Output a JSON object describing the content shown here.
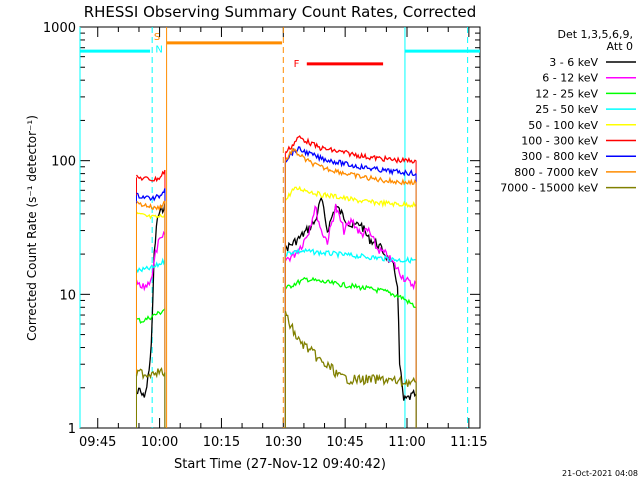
{
  "chart_data": {
    "type": "line",
    "title": "RHESSI Observing Summary Count Rates, Corrected",
    "xlabel": "Start Time (27-Nov-12 09:40:42)",
    "ylabel": "Corrected Count Rate (s⁻¹ detector⁻¹)",
    "x_unit": "minutes since 09:40:42",
    "xlim": [
      0,
      97
    ],
    "ylim": [
      1,
      1000
    ],
    "yscale": "log",
    "x_ticks": [
      {
        "label": "09:45",
        "value": 4.3
      },
      {
        "label": "10:00",
        "value": 19.3
      },
      {
        "label": "10:15",
        "value": 34.3
      },
      {
        "label": "10:30",
        "value": 49.3
      },
      {
        "label": "10:45",
        "value": 64.3
      },
      {
        "label": "11:00",
        "value": 79.3
      },
      {
        "label": "11:15",
        "value": 94.3
      }
    ],
    "y_ticks": [
      {
        "label": "1",
        "value": 1
      },
      {
        "label": "10",
        "value": 10
      },
      {
        "label": "100",
        "value": 100
      },
      {
        "label": "1000",
        "value": 1000
      }
    ],
    "legend": {
      "position": "top-right",
      "header": [
        "Det 1,3,5,6,9,",
        "Att 0"
      ]
    },
    "series": [
      {
        "name": "3 - 6 keV",
        "color": "#000000",
        "points": [
          [
            13.7,
            1.8
          ],
          [
            14.5,
            1.9
          ],
          [
            15.3,
            1.7
          ],
          [
            16.2,
            2.0
          ],
          [
            17.3,
            4.0
          ],
          [
            18.0,
            20
          ],
          [
            18.8,
            38
          ],
          [
            19.8,
            42
          ],
          [
            20.6,
            48
          ]
        ],
        "points2": [
          [
            49.8,
            22
          ],
          [
            51.5,
            24
          ],
          [
            53.0,
            26
          ],
          [
            55.0,
            30
          ],
          [
            57.0,
            35
          ],
          [
            58.5,
            52
          ],
          [
            60.0,
            30
          ],
          [
            62.0,
            46
          ],
          [
            64.0,
            38
          ],
          [
            66.0,
            32
          ],
          [
            68.0,
            34
          ],
          [
            70.0,
            26
          ],
          [
            72.0,
            24
          ],
          [
            74.0,
            20
          ],
          [
            76.0,
            16
          ],
          [
            77.0,
            12
          ],
          [
            77.5,
            3
          ],
          [
            78.5,
            1.6
          ],
          [
            80.0,
            1.7
          ],
          [
            81.5,
            1.8
          ]
        ]
      },
      {
        "name": "6 - 12 keV",
        "color": "#ff00ff",
        "points": [
          [
            13.7,
            12
          ],
          [
            15.0,
            11
          ],
          [
            16.5,
            12
          ],
          [
            17.5,
            14
          ],
          [
            18.3,
            20
          ],
          [
            19.0,
            24
          ],
          [
            20.0,
            26
          ],
          [
            20.6,
            28
          ]
        ],
        "points2": [
          [
            49.8,
            18
          ],
          [
            52.0,
            20
          ],
          [
            54.0,
            24
          ],
          [
            55.5,
            30
          ],
          [
            57.0,
            45
          ],
          [
            58.5,
            30
          ],
          [
            60.0,
            25
          ],
          [
            62.0,
            45
          ],
          [
            64.0,
            30
          ],
          [
            66.0,
            36
          ],
          [
            68.0,
            28
          ],
          [
            70.0,
            30
          ],
          [
            72.0,
            22
          ],
          [
            74.0,
            20
          ],
          [
            76.0,
            17
          ],
          [
            78.0,
            14
          ],
          [
            80.0,
            12
          ],
          [
            81.5,
            12
          ]
        ]
      },
      {
        "name": "12 - 25 keV",
        "color": "#00ff00",
        "points": [
          [
            13.7,
            6.5
          ],
          [
            15.0,
            6.3
          ],
          [
            16.5,
            6.6
          ],
          [
            18.0,
            7.0
          ],
          [
            19.5,
            7.3
          ],
          [
            20.6,
            7.8
          ]
        ],
        "points2": [
          [
            49.8,
            11
          ],
          [
            52.0,
            12
          ],
          [
            55.0,
            13
          ],
          [
            58.0,
            12.5
          ],
          [
            62.0,
            12
          ],
          [
            66.0,
            11.5
          ],
          [
            70.0,
            11
          ],
          [
            74.0,
            10.5
          ],
          [
            78.0,
            9.5
          ],
          [
            81.5,
            8
          ]
        ]
      },
      {
        "name": "25 - 50 keV",
        "color": "#00ffff",
        "points": [
          [
            13.7,
            15
          ],
          [
            15.0,
            15.2
          ],
          [
            16.5,
            15.5
          ],
          [
            18.0,
            16
          ],
          [
            19.5,
            17
          ],
          [
            20.6,
            18
          ]
        ],
        "points2": [
          [
            49.8,
            20
          ],
          [
            52.0,
            21
          ],
          [
            55.0,
            21
          ],
          [
            58.0,
            20.5
          ],
          [
            62.0,
            20
          ],
          [
            66.0,
            19.5
          ],
          [
            70.0,
            19
          ],
          [
            74.0,
            18.5
          ],
          [
            78.0,
            18
          ],
          [
            81.5,
            18
          ]
        ]
      },
      {
        "name": "50 - 100 keV",
        "color": "#ffff00",
        "points": [
          [
            13.7,
            40
          ],
          [
            15.0,
            39
          ],
          [
            16.5,
            38
          ],
          [
            18.0,
            37.5
          ],
          [
            19.5,
            38
          ],
          [
            20.6,
            40
          ]
        ],
        "points2": [
          [
            49.8,
            50
          ],
          [
            51.5,
            60
          ],
          [
            53.0,
            62
          ],
          [
            55.0,
            60
          ],
          [
            58.0,
            56
          ],
          [
            62.0,
            54
          ],
          [
            66.0,
            51
          ],
          [
            70.0,
            49
          ],
          [
            74.0,
            48
          ],
          [
            78.0,
            47
          ],
          [
            81.5,
            47
          ]
        ]
      },
      {
        "name": "100 - 300 keV",
        "color": "#ff0000",
        "points": [
          [
            13.7,
            75
          ],
          [
            15.0,
            74
          ],
          [
            16.5,
            73
          ],
          [
            18.0,
            72
          ],
          [
            19.5,
            75
          ],
          [
            20.6,
            85
          ]
        ],
        "points2": [
          [
            49.8,
            115
          ],
          [
            51.5,
            130
          ],
          [
            53.0,
            150
          ],
          [
            55.0,
            140
          ],
          [
            58.0,
            125
          ],
          [
            62.0,
            118
          ],
          [
            66.0,
            112
          ],
          [
            70.0,
            106
          ],
          [
            74.0,
            103
          ],
          [
            78.0,
            100
          ],
          [
            81.5,
            100
          ]
        ]
      },
      {
        "name": "300 - 800 keV",
        "color": "#0000ff",
        "points": [
          [
            13.7,
            55
          ],
          [
            15.0,
            54
          ],
          [
            16.5,
            53
          ],
          [
            18.0,
            52
          ],
          [
            19.5,
            55
          ],
          [
            20.6,
            62
          ]
        ],
        "points2": [
          [
            49.8,
            100
          ],
          [
            51.5,
            115
          ],
          [
            53.0,
            122
          ],
          [
            55.0,
            115
          ],
          [
            58.0,
            105
          ],
          [
            62.0,
            98
          ],
          [
            66.0,
            92
          ],
          [
            70.0,
            88
          ],
          [
            74.0,
            84
          ],
          [
            78.0,
            82
          ],
          [
            81.5,
            80
          ]
        ]
      },
      {
        "name": "800 - 7000 keV",
        "color": "#ff8c00",
        "points": [
          [
            13.7,
            48
          ],
          [
            15.0,
            47
          ],
          [
            16.5,
            46
          ],
          [
            18.0,
            44
          ],
          [
            19.5,
            45
          ],
          [
            20.6,
            50
          ]
        ],
        "points2": [
          [
            49.8,
            100
          ],
          [
            51.5,
            120
          ],
          [
            53.0,
            112
          ],
          [
            55.0,
            100
          ],
          [
            58.0,
            90
          ],
          [
            62.0,
            84
          ],
          [
            66.0,
            78
          ],
          [
            70.0,
            74
          ],
          [
            74.0,
            71
          ],
          [
            78.0,
            69
          ],
          [
            81.5,
            68
          ]
        ]
      },
      {
        "name": "7000 - 15000 keV",
        "color": "#808000",
        "points": [
          [
            13.7,
            2.5
          ],
          [
            15.0,
            2.6
          ],
          [
            16.5,
            2.5
          ],
          [
            18.0,
            2.7
          ],
          [
            19.5,
            2.6
          ],
          [
            20.6,
            2.6
          ]
        ],
        "points2": [
          [
            49.8,
            7
          ],
          [
            51.5,
            5.5
          ],
          [
            53.0,
            4.5
          ],
          [
            55.0,
            4.0
          ],
          [
            57.0,
            3.5
          ],
          [
            59.0,
            3.0
          ],
          [
            61.0,
            2.8
          ],
          [
            63.0,
            2.4
          ],
          [
            66.0,
            2.3
          ],
          [
            70.0,
            2.3
          ],
          [
            74.0,
            2.3
          ],
          [
            78.0,
            2.2
          ],
          [
            81.5,
            2.2
          ]
        ]
      }
    ],
    "annotations": [
      {
        "type": "segment",
        "color": "#00ffff",
        "x0": 0,
        "x1": 17.0,
        "y": 660
      },
      {
        "type": "segment",
        "color": "#00ffff",
        "x0": 78.8,
        "x1": 97,
        "y": 660
      },
      {
        "type": "segment",
        "color": "#ff8c00",
        "x0": 21.0,
        "x1": 49.0,
        "y": 760
      },
      {
        "type": "segment",
        "color": "#ff0000",
        "x0": 55.0,
        "x1": 73.5,
        "y": 530
      },
      {
        "type": "vline",
        "color": "#00ffff",
        "x": 0.0,
        "dashed": false
      },
      {
        "type": "vline",
        "color": "#00ffff",
        "x": 17.5,
        "dashed": true
      },
      {
        "type": "vline",
        "color": "#ff8c00",
        "x": 21.0,
        "dashed": false
      },
      {
        "type": "vline",
        "color": "#ff8c00",
        "x": 49.3,
        "dashed": true
      },
      {
        "type": "vline",
        "color": "#00ffff",
        "x": 78.8,
        "dashed": false
      },
      {
        "type": "vline",
        "color": "#00ffff",
        "x": 94.0,
        "dashed": true
      },
      {
        "type": "label",
        "text": "S",
        "color": "#ff8c00",
        "x": 18.7,
        "y": 860
      },
      {
        "type": "label",
        "text": "N",
        "color": "#00ffff",
        "x": 19.2,
        "y": 690
      },
      {
        "type": "label",
        "text": "F",
        "color": "#ff0000",
        "x": 52.5,
        "y": 540
      }
    ]
  },
  "timestamp": "21-Oct-2021 04:08"
}
